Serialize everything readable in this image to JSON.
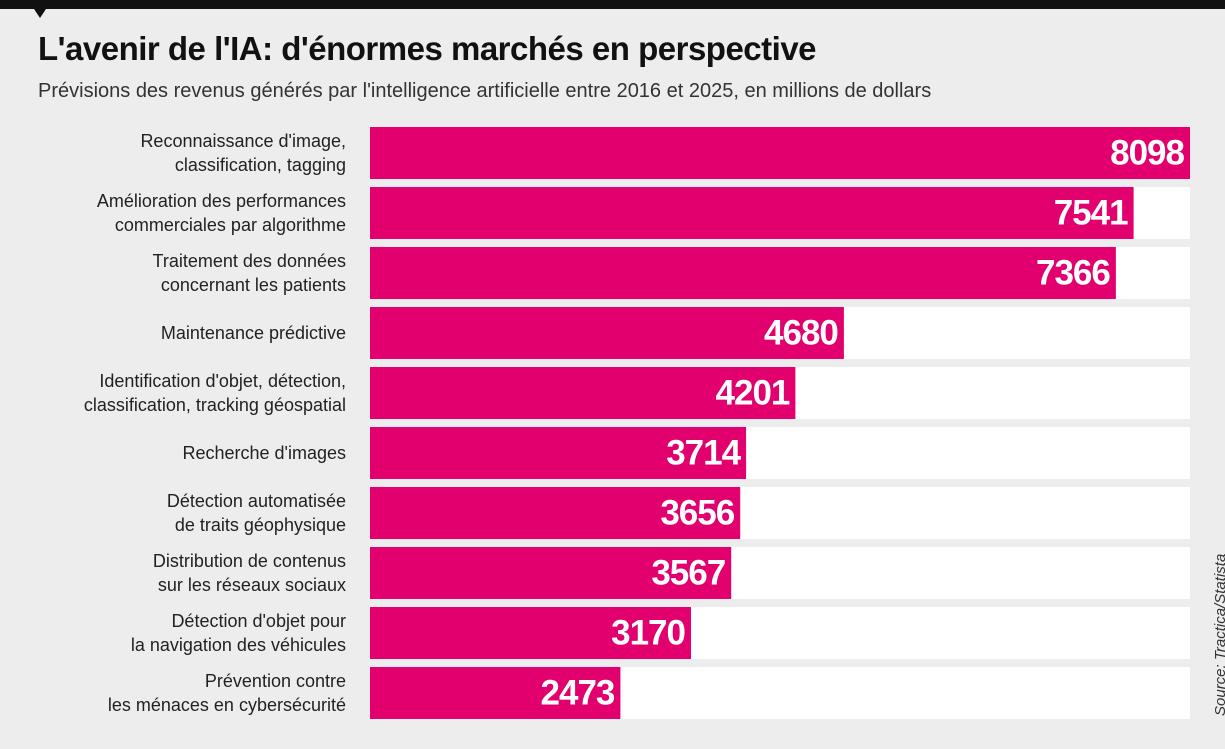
{
  "chart_data": {
    "type": "hbar",
    "title": "L'avenir de l'IA: d'énormes marchés en perspective",
    "subtitle": "Prévisions des revenus générés par l'intelligence artificielle entre 2016 et 2025, en millions de dollars",
    "source": "Source: Tractica/Statista",
    "categories": [
      "Reconnaissance d'image,\nclassification, tagging",
      "Amélioration des performances\ncommerciales par algorithme",
      "Traitement des données\nconcernant les patients",
      "Maintenance prédictive",
      "Identification d'objet, détection,\nclassification, tracking géospatial",
      "Recherche d'images",
      "Détection automatisée\nde traits géophysique",
      "Distribution de contenus\nsur les réseaux sociaux",
      "Détection d'objet pour\nla navigation des véhicules",
      "Prévention contre\nles ménaces en cybersécurité"
    ],
    "values": [
      8098,
      7541,
      7366,
      4680,
      4201,
      3714,
      3656,
      3567,
      3170,
      2473
    ],
    "color": "#e2006e"
  }
}
